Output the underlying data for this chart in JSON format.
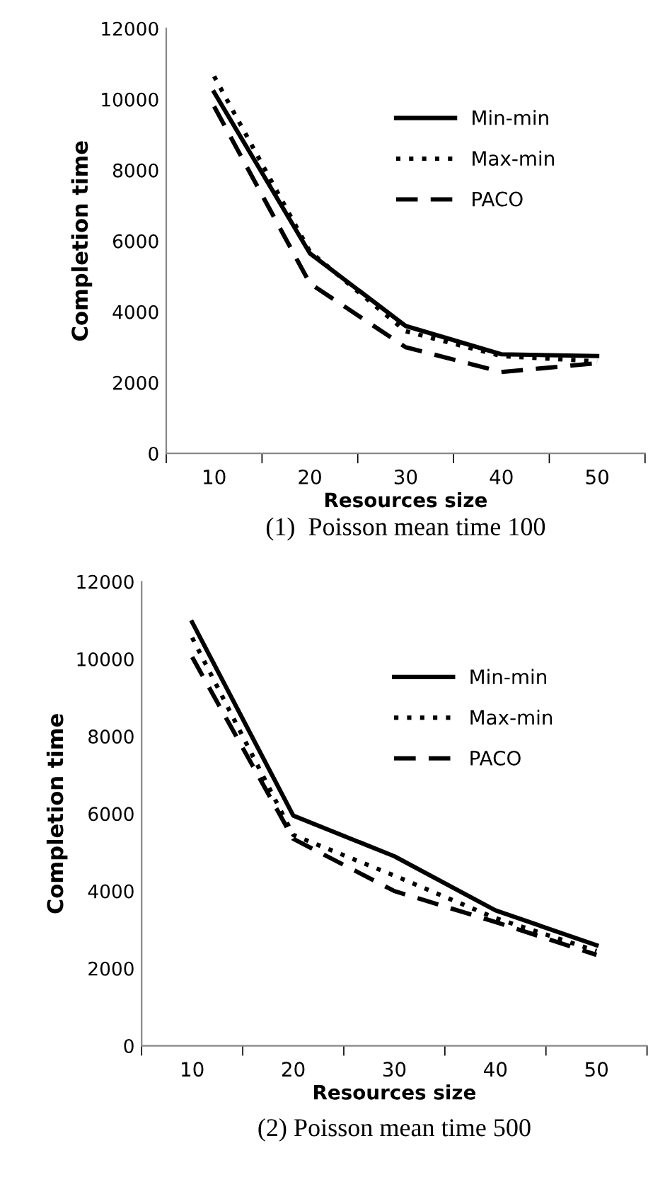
{
  "chart_data": [
    {
      "type": "line",
      "title": "(1)  Poisson mean time 100",
      "xlabel": "Resources size",
      "ylabel": "Completion time",
      "categories": [
        "10",
        "20",
        "30",
        "40",
        "50"
      ],
      "ylim": [
        0,
        12000
      ],
      "yticks": [
        0,
        2000,
        4000,
        6000,
        8000,
        10000,
        12000
      ],
      "grid": false,
      "legend": "top right",
      "marker": "none",
      "series": [
        {
          "name": "Min-min",
          "color": "#000000",
          "line_style": "solid",
          "values": [
            10200,
            5650,
            3600,
            2800,
            2750
          ]
        },
        {
          "name": "Max-min",
          "color": "#000000",
          "line_style": "dotted",
          "values": [
            10650,
            5700,
            3450,
            2750,
            2600
          ]
        },
        {
          "name": "PACO",
          "color": "#000000",
          "line_style": "dashed",
          "values": [
            9800,
            4800,
            3000,
            2300,
            2550
          ]
        }
      ]
    },
    {
      "type": "line",
      "title": "(2) Poisson mean time 500",
      "xlabel": "Resources size",
      "ylabel": "Completion time",
      "categories": [
        "10",
        "20",
        "30",
        "40",
        "50"
      ],
      "ylim": [
        0,
        12000
      ],
      "yticks": [
        0,
        2000,
        4000,
        6000,
        8000,
        10000,
        12000
      ],
      "grid": false,
      "legend": "top right",
      "marker": "none",
      "series": [
        {
          "name": "Min-min",
          "color": "#000000",
          "line_style": "solid",
          "values": [
            10950,
            5950,
            4900,
            3500,
            2600
          ]
        },
        {
          "name": "Max-min",
          "color": "#000000",
          "line_style": "dotted",
          "values": [
            10550,
            5450,
            4400,
            3300,
            2450
          ]
        },
        {
          "name": "PACO",
          "color": "#000000",
          "line_style": "dashed",
          "values": [
            10050,
            5350,
            4000,
            3200,
            2350
          ]
        }
      ]
    }
  ]
}
